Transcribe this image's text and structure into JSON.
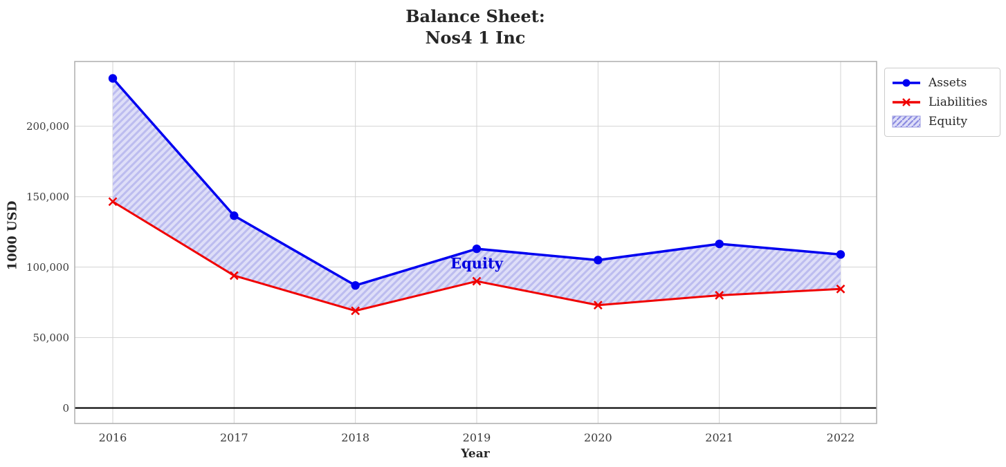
{
  "title": {
    "line1": "Balance Sheet:",
    "line2": "Nos4 1 Inc"
  },
  "axes": {
    "x_label": "Year",
    "y_label": "1000 USD"
  },
  "annotation": {
    "text": "Equity",
    "color": "#0000e0",
    "x_year": 2019,
    "y_value": 102000
  },
  "legend": {
    "position": "upper right outside",
    "items": [
      {
        "label": "Assets",
        "glyph": "line-circle",
        "color": "#0000f0"
      },
      {
        "label": "Liabilities",
        "glyph": "line-x",
        "color": "#f00000"
      },
      {
        "label": "Equity",
        "glyph": "hatch-patch",
        "color": "#dedef8"
      }
    ]
  },
  "chart_data": {
    "type": "line",
    "title": "Balance Sheet:\nNos4 1 Inc",
    "xlabel": "Year",
    "ylabel": "1000 USD",
    "x": [
      2016,
      2017,
      2018,
      2019,
      2020,
      2021,
      2022
    ],
    "x_tick_labels": [
      "2016",
      "2017",
      "2018",
      "2019",
      "2020",
      "2021",
      "2022"
    ],
    "series": [
      {
        "name": "Assets",
        "color": "#0000f0",
        "marker": "circle",
        "values": [
          234000,
          136500,
          87000,
          113000,
          105000,
          116500,
          109000
        ]
      },
      {
        "name": "Liabilities",
        "color": "#f00000",
        "marker": "x",
        "values": [
          146500,
          94000,
          69000,
          90000,
          73000,
          80000,
          84500
        ]
      }
    ],
    "fill_between": {
      "name": "Equity",
      "upper": "Assets",
      "lower": "Liabilities",
      "fill_color": "#dedef8",
      "hatch": "//",
      "hatch_color": "#bcbcef",
      "equity_values": [
        87500,
        42500,
        18000,
        23000,
        32000,
        36500,
        24500
      ]
    },
    "y_ticks": [
      0,
      50000,
      100000,
      150000,
      200000
    ],
    "y_tick_labels": [
      "0",
      "50,000",
      "100,000",
      "150,000",
      "200,000"
    ],
    "ylim": [
      -11000,
      246000
    ],
    "grid": true,
    "grid_color": "#d3d3d3",
    "spine_color": "#a9a9a9",
    "zero_line": true,
    "zero_line_color": "#000000"
  }
}
